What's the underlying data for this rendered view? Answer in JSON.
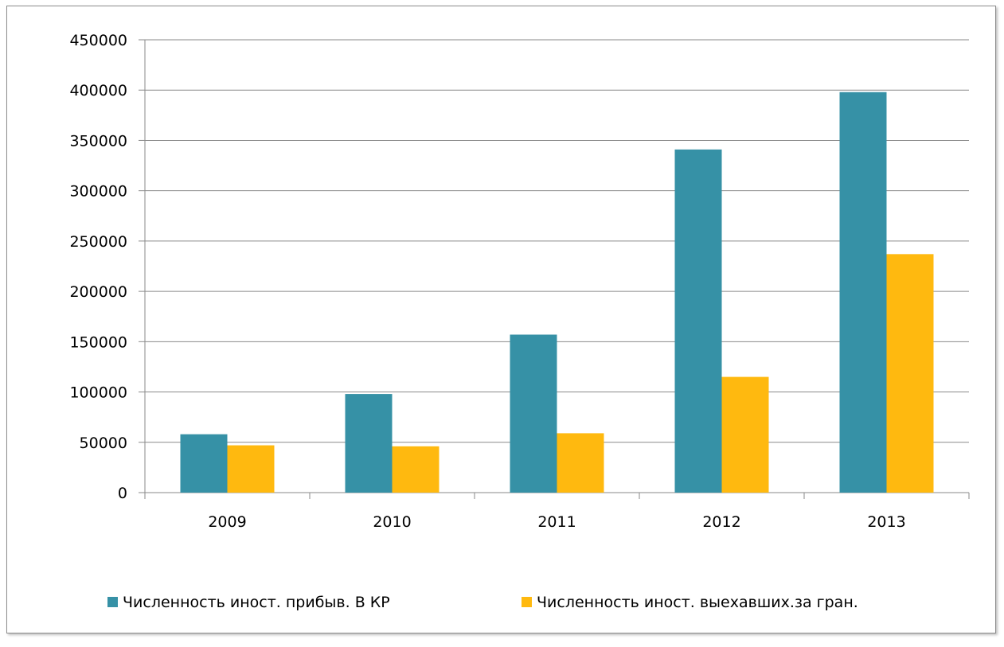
{
  "chart_data": {
    "type": "bar",
    "categories": [
      "2009",
      "2010",
      "2011",
      "2012",
      "2013"
    ],
    "series": [
      {
        "name": "Численность иност. прибыв. В КР",
        "color": "#3691a6",
        "values": [
          58000,
          98000,
          157000,
          341000,
          398000
        ]
      },
      {
        "name": "Численность иност. выехавших.за гран.",
        "color": "#ffb90f",
        "values": [
          47000,
          46000,
          59000,
          115000,
          237000
        ]
      }
    ],
    "yticks": [
      "0",
      "50000",
      "100000",
      "150000",
      "200000",
      "250000",
      "300000",
      "350000",
      "400000",
      "450000"
    ],
    "ylim": [
      0,
      450000
    ],
    "grid": true,
    "legend_position": "bottom"
  }
}
